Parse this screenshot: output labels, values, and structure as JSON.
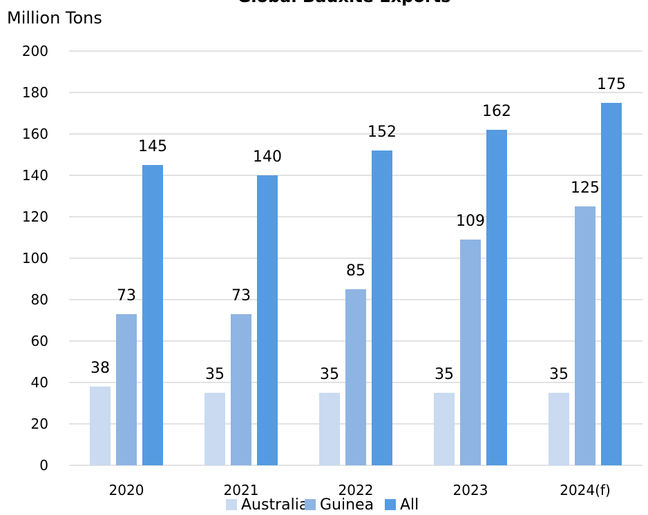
{
  "chart_data": {
    "type": "bar",
    "title": "Global Bauxite Exports",
    "ylabel": "Million Tons",
    "xlabel": "",
    "categories": [
      "2020",
      "2021",
      "2022",
      "2023",
      "2024(f)"
    ],
    "series": [
      {
        "name": "Australia",
        "color": "#c9daf1",
        "values": [
          38,
          35,
          35,
          35,
          35
        ]
      },
      {
        "name": "Guinea",
        "color": "#8eb4e3",
        "values": [
          73,
          73,
          85,
          109,
          125
        ]
      },
      {
        "name": "All",
        "color": "#559be1",
        "values": [
          145,
          140,
          152,
          162,
          175
        ]
      }
    ],
    "ylim": [
      0,
      200
    ],
    "yticks": [
      "0",
      "20",
      "40",
      "60",
      "80",
      "100",
      "120",
      "140",
      "160",
      "180",
      "200"
    ],
    "grid": true,
    "legend_position": "bottom"
  }
}
